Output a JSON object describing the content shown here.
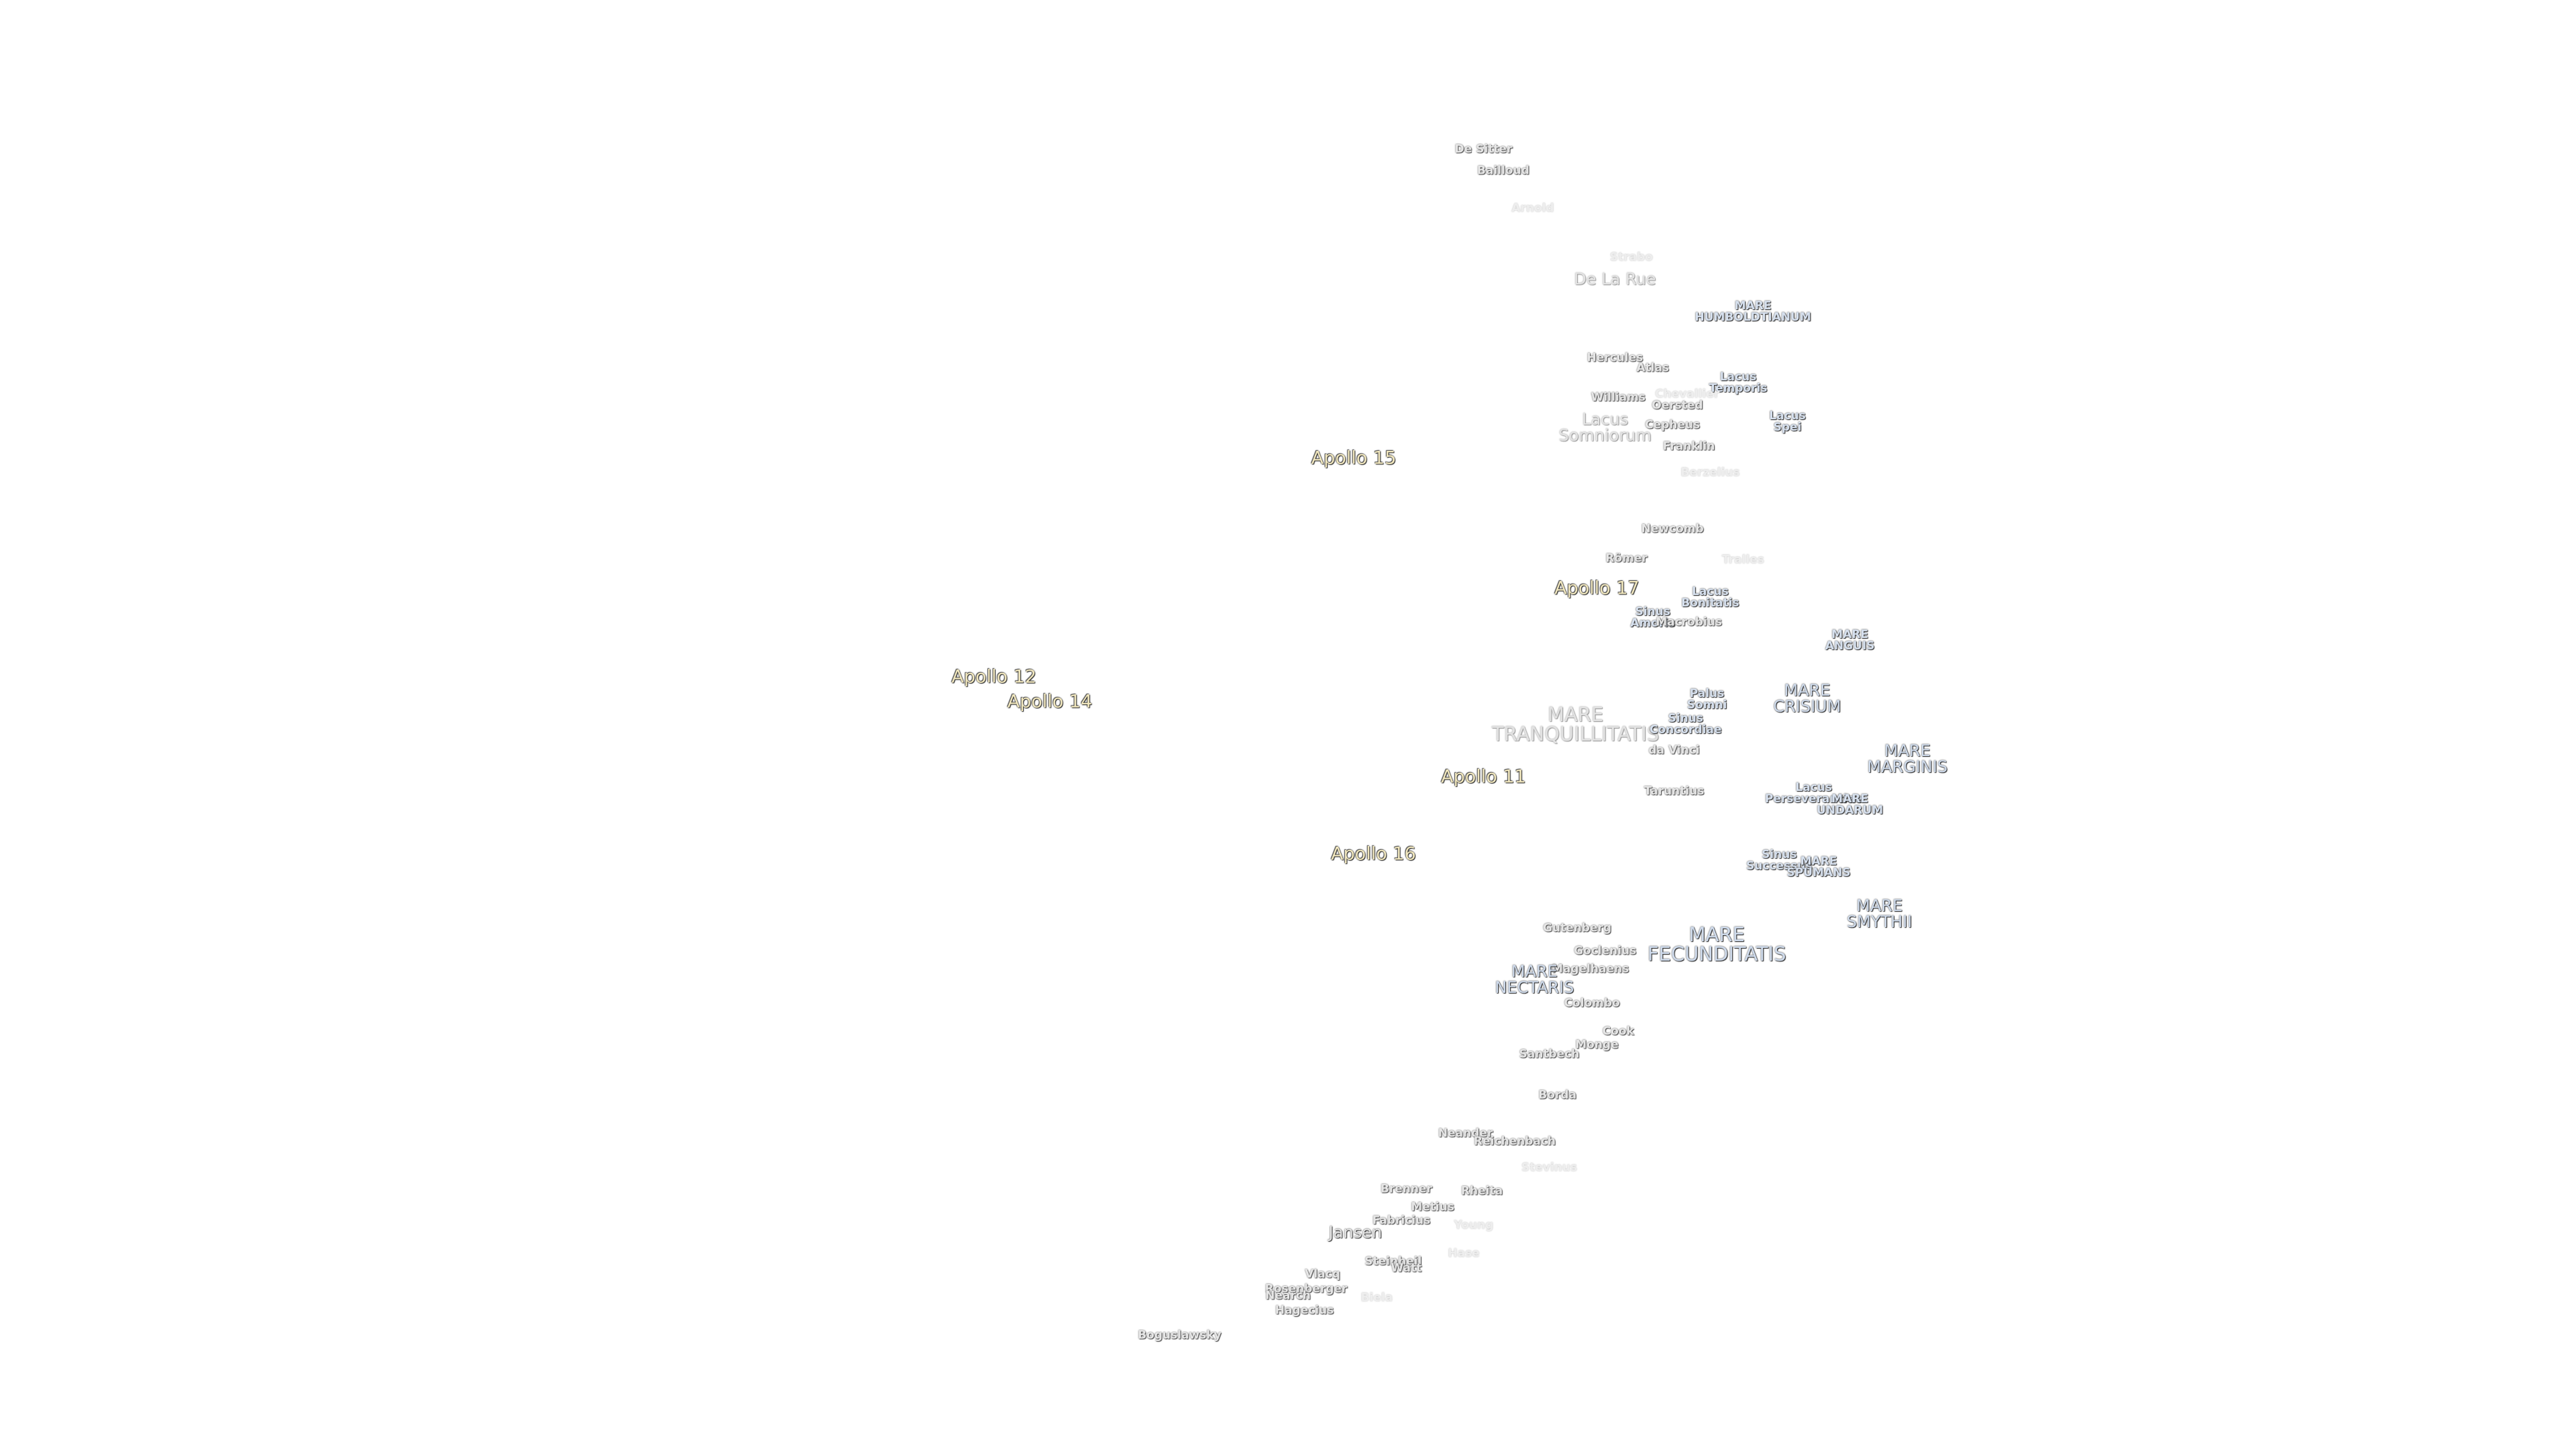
{
  "labels": [
    "De Sitter",
    "Bailloud",
    "Arnold",
    "Strabo",
    "De La Rue",
    "MARE\nHUMBOLDTIANUM",
    "Hercules",
    "Atlas",
    "Lacus\nTemporis",
    "Chevallier",
    "Williams",
    "Oersted",
    "Lacus\nSomniorum",
    "Cepheus",
    "Lacus\nSpei",
    "Franklin",
    "Berzelius",
    "Apollo 15",
    "Newcomb",
    "Römer",
    "Tralles",
    "Apollo 17",
    "Lacus\nBonitatis",
    "Sinus\nAmoris",
    "Macrobius",
    "MARE\nANGUIS",
    "Apollo 12",
    "Apollo 14",
    "Palus\nSomni",
    "MARE\nCRISIUM",
    "MARE\nTRANQUILLITATIS",
    "Sinus\nConcordiae",
    "da Vinci",
    "MARE\nMARGINIS",
    "Apollo 11",
    "Taruntius",
    "Lacus\nPerseverantiae",
    "MARE\nUNDARUM",
    "Apollo 16",
    "Sinus\nSuccessus",
    "MARE\nSPUMANS",
    "MARE\nSMYTHII",
    "Gutenberg",
    "MARE\nFECUNDITATIS",
    "Goclenius",
    "Magelhaens",
    "MARE\nNECTARIS",
    "Colombo",
    "Cook",
    "Monge",
    "Santbech",
    "Borda",
    "Neander",
    "Reichenbach",
    "Stevinus",
    "Brenner",
    "Rheita",
    "Metius",
    "Fabricius",
    "Jansen",
    "Young",
    "Steinheil",
    "Hase",
    "Vlacq",
    "Watt",
    "Rosenberger",
    "Nearch",
    "Biela",
    "Hagecius",
    "Boguslawsky"
  ]
}
